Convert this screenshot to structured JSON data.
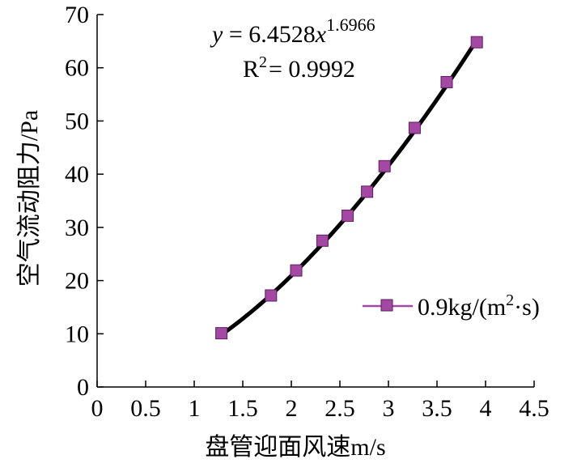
{
  "chart_data": {
    "type": "scatter",
    "xlabel": "盘管迎面风速m/s",
    "ylabel": "空气流动阻力/Pa",
    "xlim": [
      0,
      4.5
    ],
    "ylim": [
      0,
      70
    ],
    "x_ticks": [
      "0",
      "0.5",
      "1",
      "1.5",
      "2",
      "2.5",
      "3",
      "3.5",
      "4",
      "4.5"
    ],
    "y_ticks": [
      "0",
      "10",
      "20",
      "30",
      "40",
      "50",
      "60",
      "70"
    ],
    "grid": false,
    "legend_position": "right",
    "series": [
      {
        "name": "0.9kg/(m²·s)",
        "marker_color": "#A349A4",
        "points": [
          {
            "x": 1.28,
            "y": 10.1
          },
          {
            "x": 1.79,
            "y": 17.2
          },
          {
            "x": 2.05,
            "y": 21.9
          },
          {
            "x": 2.32,
            "y": 27.5
          },
          {
            "x": 2.58,
            "y": 32.2
          },
          {
            "x": 2.78,
            "y": 36.7
          },
          {
            "x": 2.96,
            "y": 41.5
          },
          {
            "x": 3.27,
            "y": 48.7
          },
          {
            "x": 3.6,
            "y": 57.3
          },
          {
            "x": 3.91,
            "y": 64.8
          }
        ]
      }
    ],
    "trendline": {
      "type": "power",
      "coefficient": 6.4528,
      "exponent": 1.6966,
      "x_range": [
        1.28,
        3.91
      ],
      "color": "#000000"
    },
    "annotations": {
      "equation_y": "y",
      "equation_eq": " = 6.4528",
      "equation_x": "x",
      "equation_exp": "1.6966",
      "r2_base": "R",
      "r2_sup": "2",
      "r2_value": "= 0.9992"
    },
    "legend": {
      "label_main": "0.9kg/(m",
      "label_sup": "2",
      "label_end": "·s)"
    }
  }
}
